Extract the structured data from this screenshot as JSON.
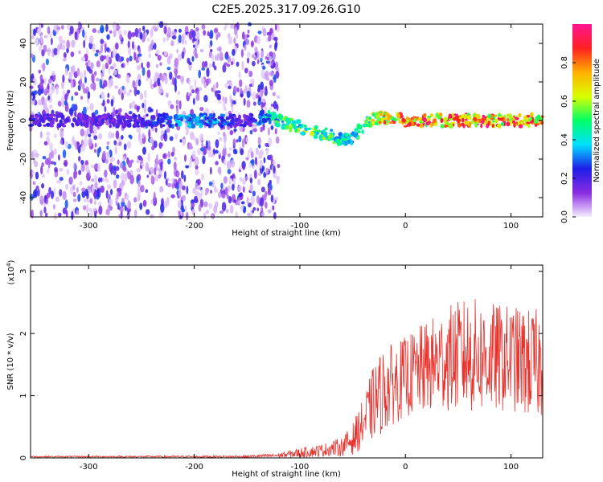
{
  "title": "C2E5.2025.317.09.26.G10",
  "chart_data": [
    {
      "type": "heatmap",
      "xlabel": "Height of straight line (km)",
      "ylabel": "Frequency (Hz)",
      "xlim": [
        -355,
        130
      ],
      "ylim": [
        -50,
        50
      ],
      "xticks": [
        -300,
        -200,
        -100,
        0,
        100
      ],
      "yticks": [
        -40,
        -20,
        0,
        20,
        40
      ],
      "colorbar": {
        "label": "Normalized spectral amplitude",
        "range": [
          0,
          1
        ],
        "ticks": [
          "0.0",
          "0.2",
          "0.4",
          "0.6",
          "0.8"
        ],
        "colors": [
          "#f6eefe",
          "#8a2be2",
          "#1e1ee8",
          "#00e0ff",
          "#00ff66",
          "#d8ff00",
          "#ffb000",
          "#ff2020",
          "#ff1493"
        ]
      },
      "noise_region_x": [
        -355,
        -130
      ],
      "track": {
        "x": [
          -355,
          -330,
          -300,
          -270,
          -240,
          -210,
          -180,
          -150,
          -130,
          -110,
          -90,
          -75,
          -60,
          -50,
          -45,
          -40,
          -35,
          -30,
          -20,
          0,
          50,
          100,
          130
        ],
        "freq": [
          0,
          0,
          0,
          0,
          0,
          0,
          0,
          0,
          2,
          -2,
          -5,
          -7,
          -10,
          -9,
          -6,
          -4,
          0,
          1,
          1,
          0,
          0,
          0,
          0
        ],
        "amp": [
          0.25,
          0.2,
          0.2,
          0.2,
          0.25,
          0.4,
          0.35,
          0.2,
          0.45,
          0.55,
          0.6,
          0.55,
          0.5,
          0.45,
          0.5,
          0.55,
          0.6,
          0.7,
          0.8,
          0.9,
          0.95,
          0.9,
          0.85
        ]
      }
    },
    {
      "type": "line",
      "xlabel": "Height of straight line (km)",
      "ylabel": "SNR (10 * v/v)",
      "y_multiplier": "(x10",
      "y_multiplier_exp": "4",
      "y_multiplier_close": ")",
      "xlim": [
        -355,
        130
      ],
      "ylim": [
        0,
        3.1
      ],
      "xticks": [
        -300,
        -200,
        -100,
        0,
        100
      ],
      "yticks": [
        0,
        1,
        2,
        3
      ],
      "color": "#e8322d",
      "envelope": {
        "x": [
          -355,
          -150,
          -120,
          -100,
          -80,
          -60,
          -50,
          -40,
          -30,
          -20,
          -10,
          0,
          20,
          40,
          60,
          80,
          100,
          120,
          130
        ],
        "mean": [
          0.02,
          0.02,
          0.04,
          0.08,
          0.12,
          0.18,
          0.3,
          0.55,
          0.9,
          1.1,
          1.2,
          1.3,
          1.45,
          1.6,
          1.65,
          1.6,
          1.6,
          1.5,
          1.5
        ],
        "amp": [
          0.01,
          0.02,
          0.04,
          0.08,
          0.1,
          0.15,
          0.25,
          0.4,
          0.6,
          0.7,
          0.65,
          0.65,
          0.75,
          0.85,
          0.95,
          0.9,
          0.85,
          0.9,
          0.9
        ]
      }
    }
  ]
}
